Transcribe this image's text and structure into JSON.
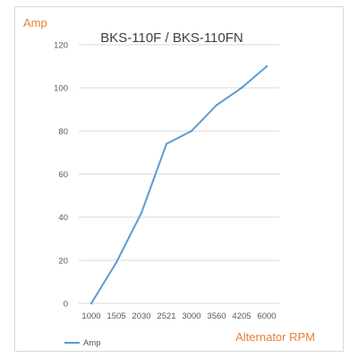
{
  "chart_data": {
    "type": "line",
    "title": "BKS-110F / BKS-110FN",
    "ylabel": "Amp",
    "xlabel": "Alternator RPM",
    "categories": [
      "1000",
      "1505",
      "2030",
      "2521",
      "3000",
      "3560",
      "4205",
      "6000"
    ],
    "series": [
      {
        "name": "Amp",
        "values": [
          0,
          19,
          42,
          74,
          80,
          92,
          100,
          110
        ]
      }
    ],
    "ylim": [
      0,
      120
    ],
    "yticks": [
      0,
      20,
      40,
      60,
      80,
      100,
      120
    ],
    "grid": true,
    "legend": "bottom-left",
    "colors": {
      "line": "#5b9bd5",
      "unit_labels": "#ed7d31",
      "grid": "#d9d9d9"
    }
  }
}
